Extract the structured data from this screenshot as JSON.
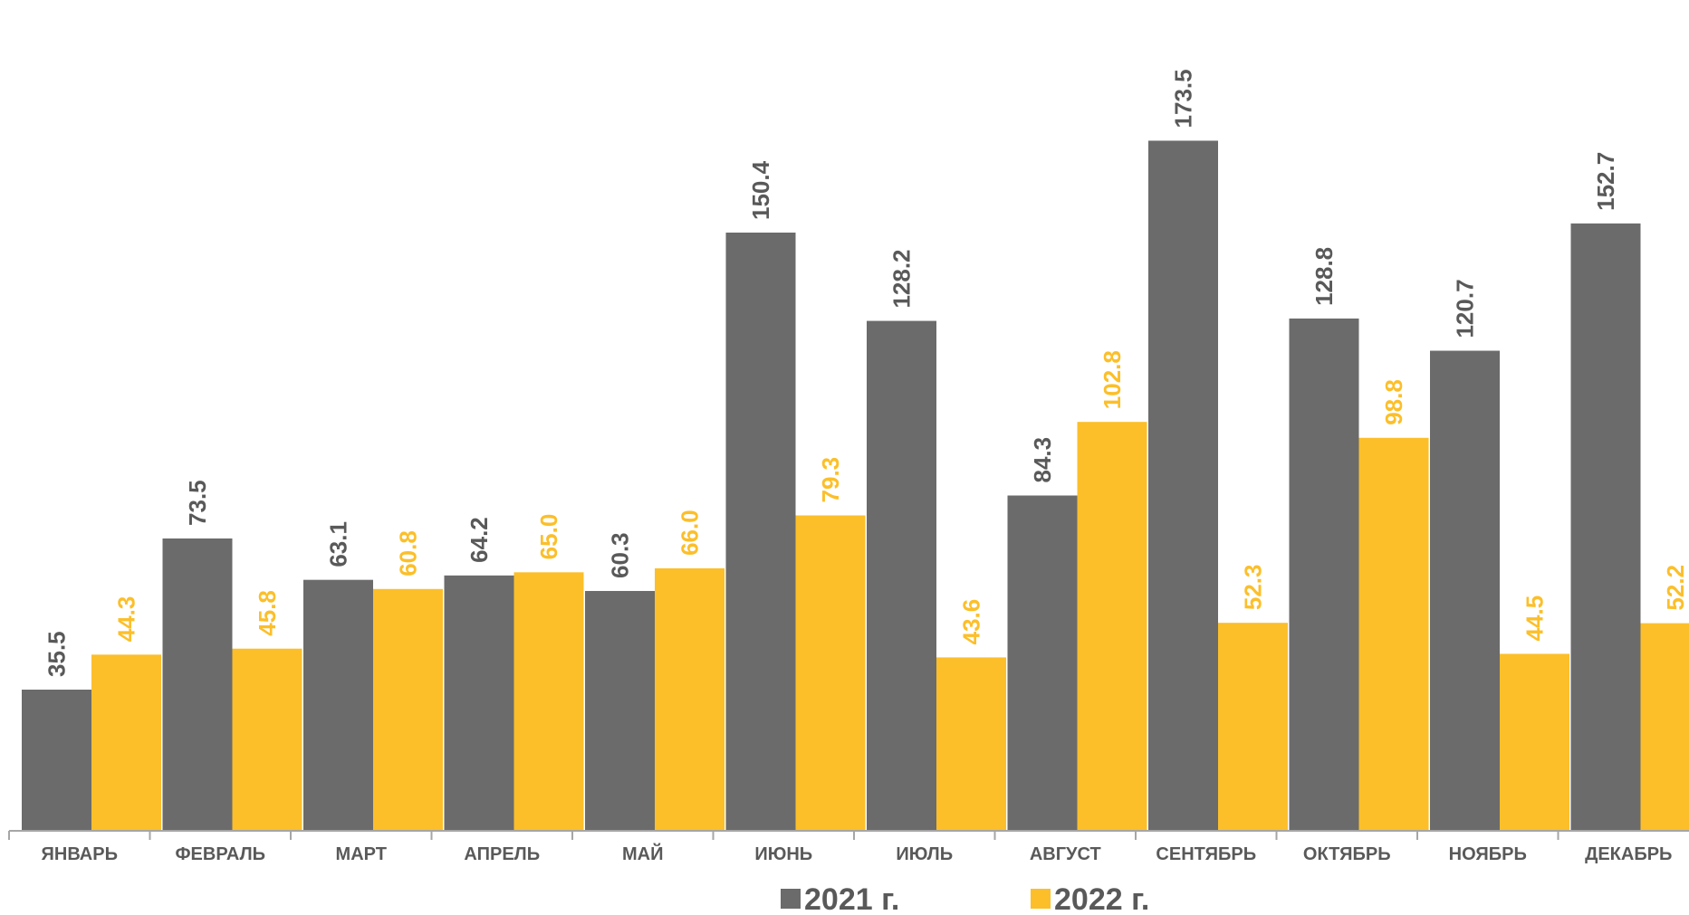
{
  "chart_data": {
    "type": "bar",
    "categories": [
      "ЯНВАРЬ",
      "ФЕВРАЛЬ",
      "МАРТ",
      "АПРЕЛЬ",
      "МАЙ",
      "ИЮНЬ",
      "ИЮЛЬ",
      "АВГУСТ",
      "СЕНТЯБРЬ",
      "ОКТЯБРЬ",
      "НОЯБРЬ",
      "ДЕКАБРЬ"
    ],
    "series": [
      {
        "name": "2021 г.",
        "color": "#6b6b6b",
        "label_color": "#595959",
        "values": [
          35.5,
          73.5,
          63.1,
          64.2,
          60.3,
          150.4,
          128.2,
          84.3,
          173.5,
          128.8,
          120.7,
          152.7
        ],
        "labels": [
          "35.5",
          "73.5",
          "63.1",
          "64.2",
          "60.3",
          "150.4",
          "128.2",
          "84.3",
          "173.5",
          "128.8",
          "120.7",
          "152.7"
        ]
      },
      {
        "name": "2022 г.",
        "color": "#fcbf2a",
        "label_color": "#fcbf2a",
        "values": [
          44.3,
          45.8,
          60.8,
          65.0,
          66.0,
          79.3,
          43.6,
          102.8,
          52.3,
          98.8,
          44.5,
          52.2
        ],
        "labels": [
          "44.3",
          "45.8",
          "60.8",
          "65.0",
          "66.0",
          "79.3",
          "43.6",
          "102.8",
          "52.3",
          "98.8",
          "44.5",
          "52.2"
        ]
      }
    ],
    "title": "",
    "xlabel": "",
    "ylabel": "",
    "ylim": [
      0,
      200
    ],
    "grid": false,
    "legend_position": "bottom"
  }
}
